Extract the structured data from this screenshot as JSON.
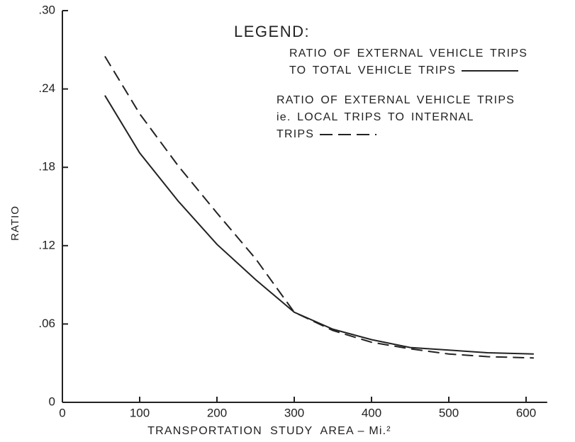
{
  "chart_data": {
    "type": "line",
    "x_label": "TRANSPORTATION  STUDY  AREA – Mi.²",
    "y_label": "RATIO",
    "legend_title": "LEGEND:",
    "xlim": [
      0,
      620
    ],
    "ylim": [
      0,
      0.3
    ],
    "xticks": [
      0,
      100,
      200,
      300,
      400,
      500,
      600
    ],
    "yticks": [
      0,
      {
        "value": 0.06,
        "label": ".06"
      },
      {
        "value": 0.12,
        "label": ".12"
      },
      {
        "value": 0.18,
        "label": ".18"
      },
      {
        "value": 0.24,
        "label": ".24"
      },
      {
        "value": 0.3,
        "label": ".30"
      }
    ],
    "x": [
      55,
      100,
      150,
      200,
      250,
      300,
      350,
      400,
      450,
      500,
      550,
      610
    ],
    "series": [
      {
        "name": "RATIO OF EXTERNAL VEHICLE TRIPS\nTO TOTAL VEHICLE TRIPS",
        "color": "#222222",
        "dash": "solid",
        "values": [
          0.235,
          0.191,
          0.154,
          0.121,
          0.094,
          0.069,
          0.056,
          0.048,
          0.042,
          0.04,
          0.038,
          0.037
        ]
      },
      {
        "name": "RATIO OF EXTERNAL VEHICLE TRIPS\nie. LOCAL TRIPS TO INTERNAL\nTRIPS",
        "color": "#222222",
        "dash": "dashed",
        "values": [
          0.265,
          0.221,
          0.181,
          0.145,
          0.11,
          0.069,
          0.055,
          0.046,
          0.041,
          0.037,
          0.035,
          0.034
        ]
      }
    ]
  }
}
